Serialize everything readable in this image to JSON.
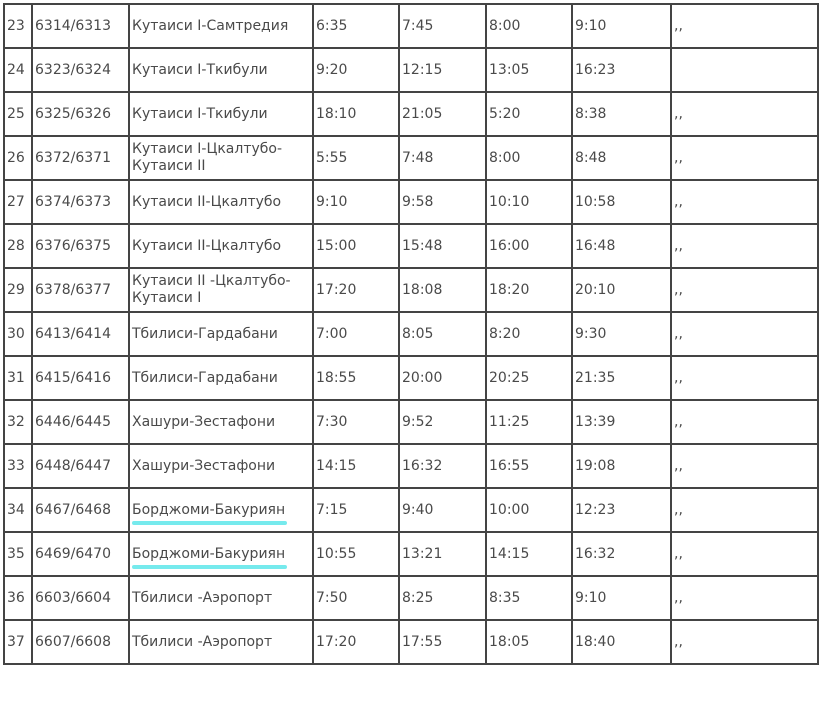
{
  "rows": [
    {
      "n": "23",
      "train": "6314/6313",
      "route": "Кутаиси I-Самтредия",
      "t1": "6:35",
      "t2": "7:45",
      "t3": "8:00",
      "t4": "9:10",
      "note": ",,"
    },
    {
      "n": "24",
      "train": "6323/6324",
      "route": "Кутаиси I-Ткибули",
      "t1": "9:20",
      "t2": "12:15",
      "t3": "13:05",
      "t4": "16:23",
      "note": ""
    },
    {
      "n": "25",
      "train": "6325/6326",
      "route": "Кутаиси I-Ткибули",
      "t1": "18:10",
      "t2": "21:05",
      "t3": "5:20",
      "t4": "8:38",
      "note": ",,"
    },
    {
      "n": "26",
      "train": "6372/6371",
      "route": "Кутаиси I-Цкалтубо-Кутаиси II",
      "t1": "5:55",
      "t2": "7:48",
      "t3": "8:00",
      "t4": "8:48",
      "note": ",,"
    },
    {
      "n": "27",
      "train": "6374/6373",
      "route": "Кутаиси II-Цкалтубо",
      "t1": "9:10",
      "t2": "9:58",
      "t3": "10:10",
      "t4": "10:58",
      "note": ",,"
    },
    {
      "n": "28",
      "train": "6376/6375",
      "route": "Кутаиси II-Цкалтубо",
      "t1": "15:00",
      "t2": "15:48",
      "t3": "16:00",
      "t4": "16:48",
      "note": ",,"
    },
    {
      "n": "29",
      "train": "6378/6377",
      "route": "Кутаиси II -Цкалтубо-Кутаиси I",
      "t1": "17:20",
      "t2": "18:08",
      "t3": "18:20",
      "t4": "20:10",
      "note": ",,"
    },
    {
      "n": "30",
      "train": "6413/6414",
      "route": "Тбилиси-Гардабани",
      "t1": "7:00",
      "t2": "8:05",
      "t3": "8:20",
      "t4": "9:30",
      "note": ",,"
    },
    {
      "n": "31",
      "train": "6415/6416",
      "route": "Тбилиси-Гардабани",
      "t1": "18:55",
      "t2": "20:00",
      "t3": "20:25",
      "t4": "21:35",
      "note": ",,"
    },
    {
      "n": "32",
      "train": "6446/6445",
      "route": "Хашури-Зестафони",
      "t1": "7:30",
      "t2": "9:52",
      "t3": "11:25",
      "t4": "13:39",
      "note": ",,"
    },
    {
      "n": "33",
      "train": "6448/6447",
      "route": "Хашури-Зестафони",
      "t1": "14:15",
      "t2": "16:32",
      "t3": "16:55",
      "t4": "19:08",
      "note": ",,"
    },
    {
      "n": "34",
      "train": "6467/6468",
      "route": "Борджоми-Бакуриян",
      "t1": "7:15",
      "t2": "9:40",
      "t3": "10:00",
      "t4": "12:23",
      "note": ",,",
      "highlight": true
    },
    {
      "n": "35",
      "train": "6469/6470",
      "route": "Борджоми-Бакуриян",
      "t1": "10:55",
      "t2": "13:21",
      "t3": "14:15",
      "t4": "16:32",
      "note": ",,",
      "highlight": true
    },
    {
      "n": "36",
      "train": "6603/6604",
      "route": "Тбилиси -Аэропорт",
      "t1": "7:50",
      "t2": "8:25",
      "t3": "8:35",
      "t4": "9:10",
      "note": ",,"
    },
    {
      "n": "37",
      "train": "6607/6608",
      "route": "Тбилиси -Аэропорт",
      "t1": "17:20",
      "t2": "17:55",
      "t3": "18:05",
      "t4": "18:40",
      "note": ",,"
    }
  ],
  "colors": {
    "highlight": "#5ee6ea",
    "border": "#444444",
    "text": "#4a4a4a"
  }
}
